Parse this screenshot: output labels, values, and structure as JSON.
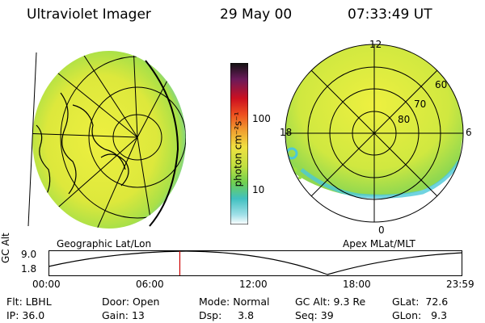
{
  "header": {
    "instrument": "Ultraviolet Imager",
    "date": "29 May 00",
    "time": "07:33:49 UT"
  },
  "colorbar": {
    "unit_label": "photon cm⁻²s⁻¹",
    "ticks": [
      "100",
      "10"
    ]
  },
  "left_map": {
    "label": "Geographic Lat/Lon"
  },
  "right_map": {
    "label": "Apex MLat/MLT",
    "mlt_labels": [
      "12",
      "18",
      "6",
      "0"
    ],
    "lat_labels": [
      "60",
      "70",
      "80"
    ]
  },
  "altitude_plot": {
    "y_label": "GC Alt",
    "y_ticks": [
      "9.0",
      "1.8"
    ],
    "x_ticks": [
      "00:00",
      "06:00",
      "12:00",
      "18:00",
      "23:59"
    ],
    "current_time_fraction": 0.3173
  },
  "status": {
    "flt_label": "Flt:",
    "flt_value": "LBHL",
    "ip_label": "IP:",
    "ip_value": "36.0",
    "door_label": "Door:",
    "door_value": "Open",
    "gain_label": "Gain:",
    "gain_value": "13",
    "mode_label": "Mode:",
    "mode_value": "Normal",
    "dsp_label": "Dsp:",
    "dsp_value": "3.8",
    "gcalt_label": "GC Alt:",
    "gcalt_value": "9.3 Re",
    "seq_label": "Seq:",
    "seq_value": "39",
    "glat_label": "GLat:",
    "glat_value": "72.6",
    "glon_label": "GLon:",
    "glon_value": "9.3"
  },
  "colors": {
    "marker": "#cc0000",
    "aurora_main": "#e8ec40",
    "aurora_green": "#9ee040",
    "aurora_cyan": "#4cc8d8"
  }
}
